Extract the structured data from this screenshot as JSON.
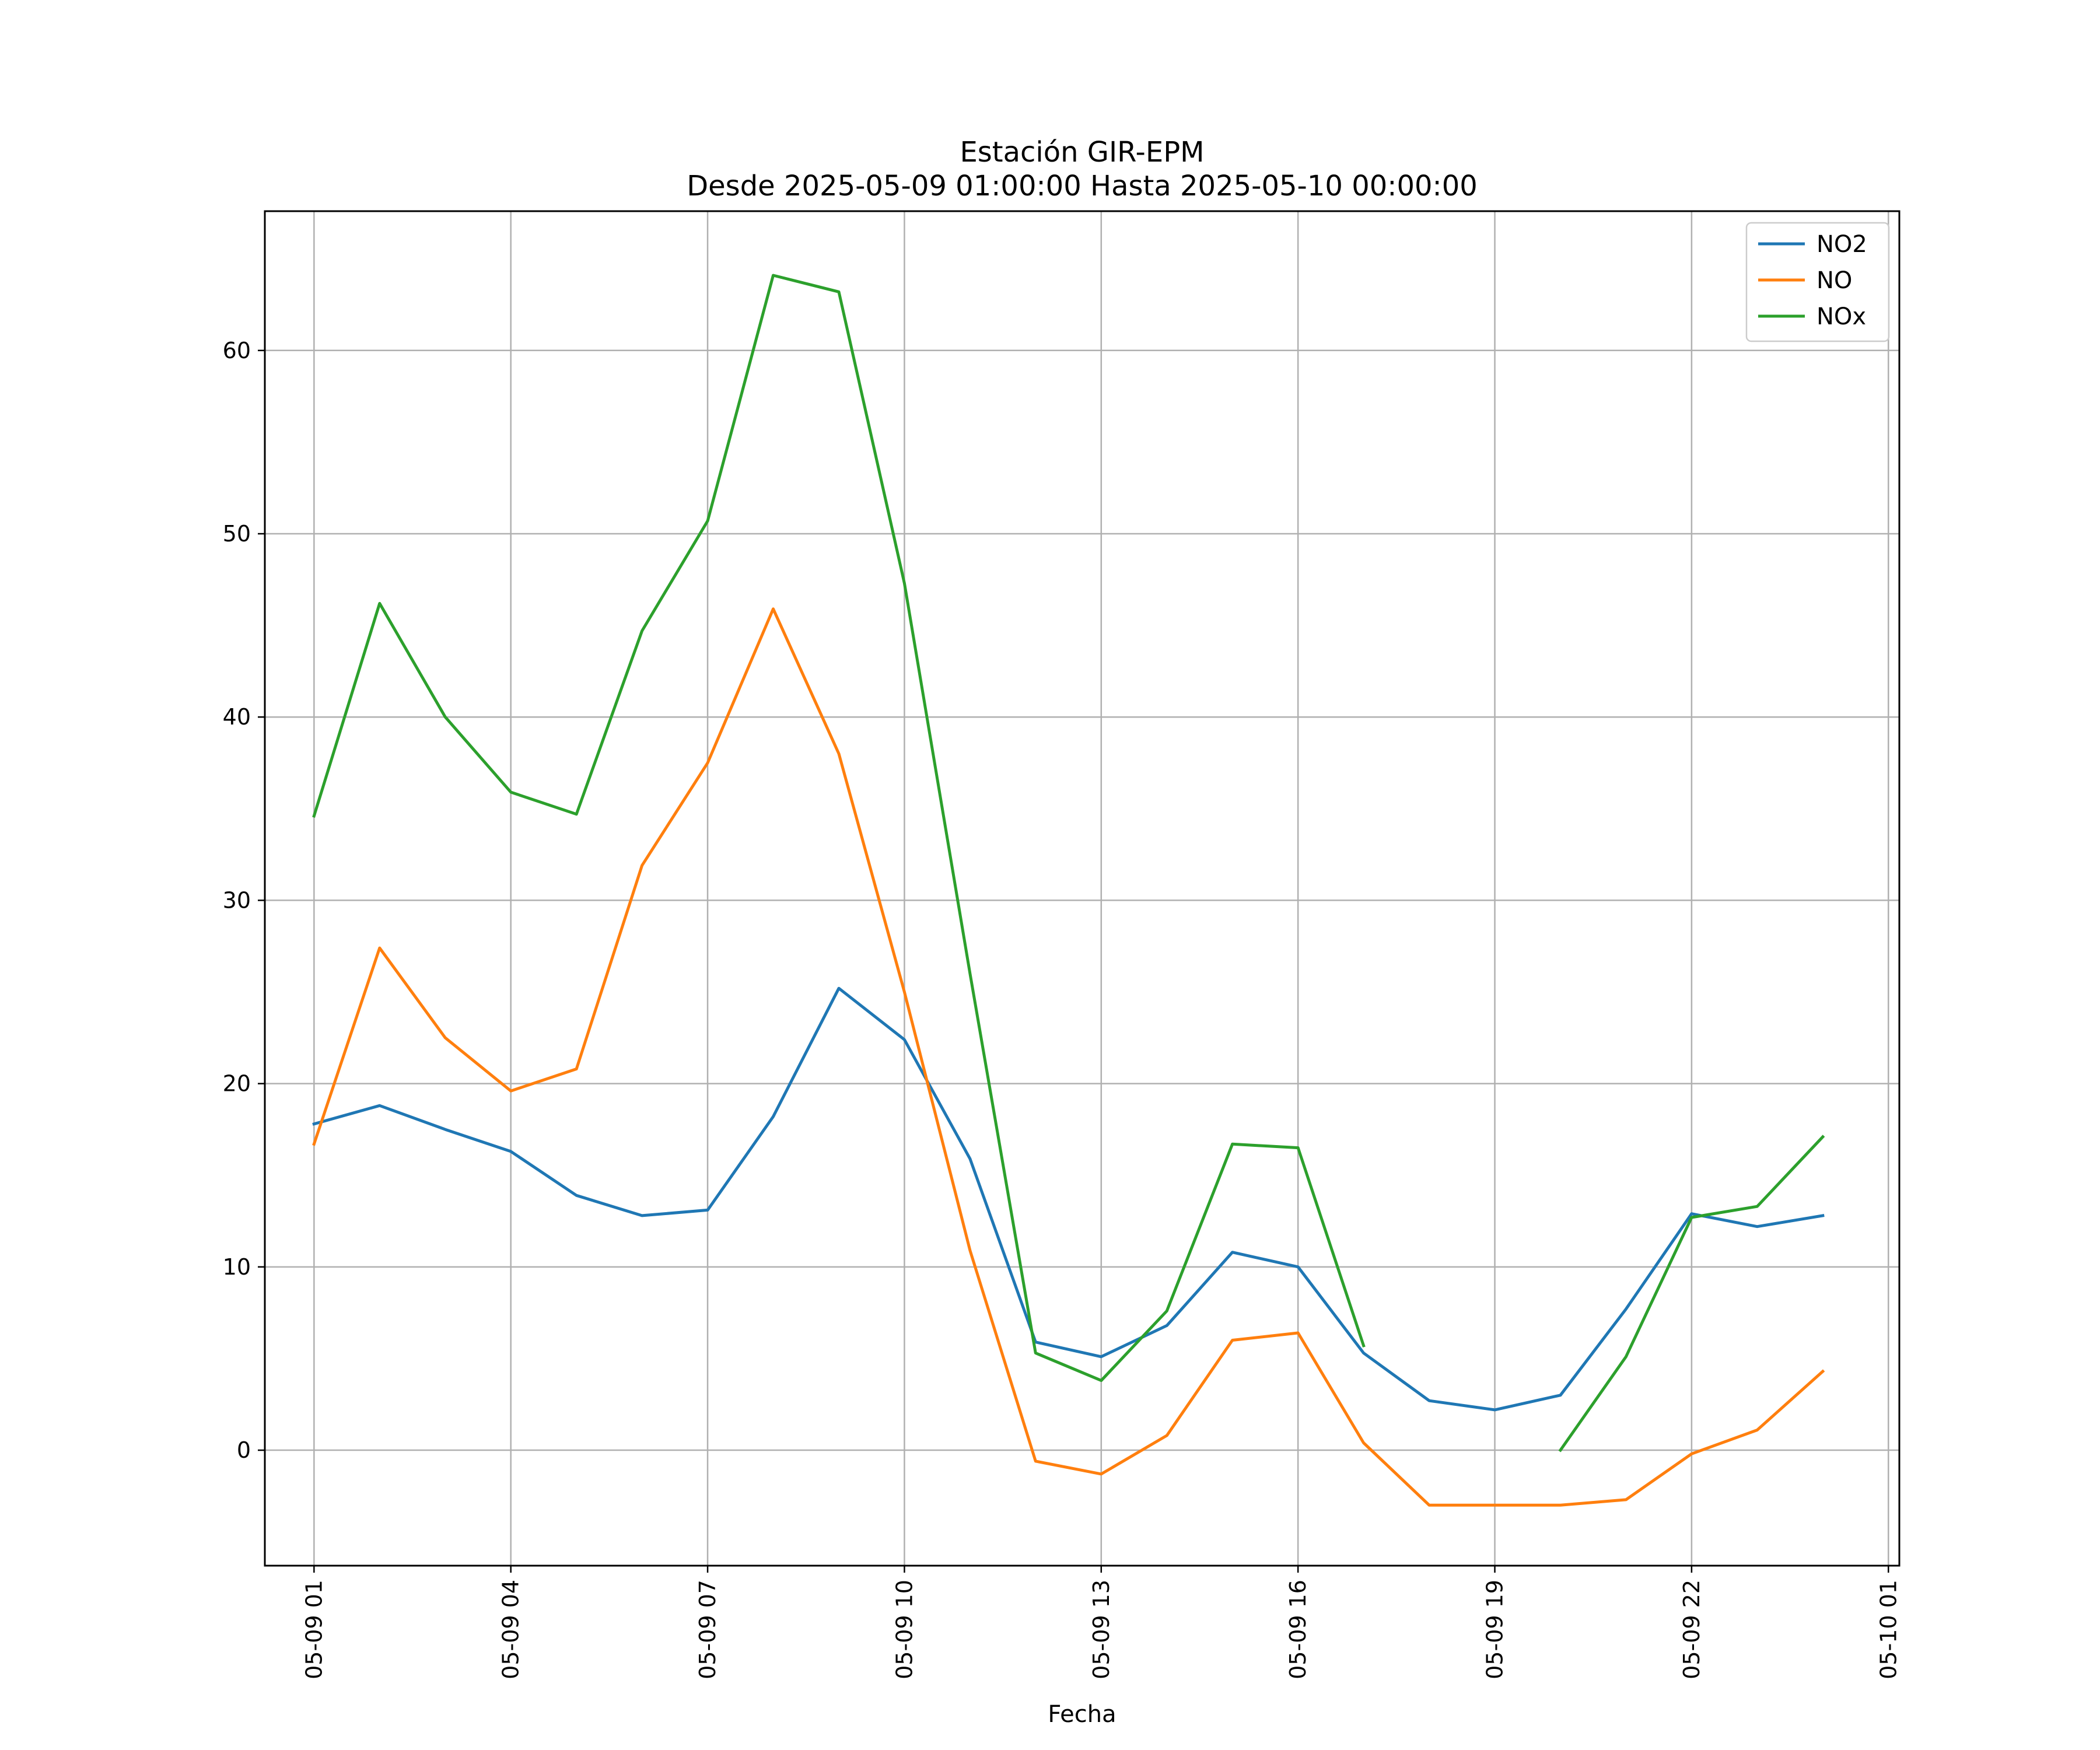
{
  "chart_data": {
    "type": "line",
    "title": "Estación GIR-EPM",
    "subtitle": "Desde 2025-05-09 01:00:00 Hasta 2025-05-10 00:00:00",
    "xlabel": "Fecha",
    "ylabel": "",
    "x": [
      "2025-05-09 01:00",
      "2025-05-09 02:00",
      "2025-05-09 03:00",
      "2025-05-09 04:00",
      "2025-05-09 05:00",
      "2025-05-09 06:00",
      "2025-05-09 07:00",
      "2025-05-09 08:00",
      "2025-05-09 09:00",
      "2025-05-09 10:00",
      "2025-05-09 11:00",
      "2025-05-09 12:00",
      "2025-05-09 13:00",
      "2025-05-09 14:00",
      "2025-05-09 15:00",
      "2025-05-09 16:00",
      "2025-05-09 17:00",
      "2025-05-09 18:00",
      "2025-05-09 19:00",
      "2025-05-09 20:00",
      "2025-05-09 21:00",
      "2025-05-09 22:00",
      "2025-05-09 23:00",
      "2025-05-10 00:00"
    ],
    "xlim": [
      "2025-05-09 00:15",
      "2025-05-10 01:10"
    ],
    "ylim": [
      -6.3,
      67.6
    ],
    "x_ticks": [
      {
        "at": "2025-05-09 01:00",
        "label": "05-09 01"
      },
      {
        "at": "2025-05-09 04:00",
        "label": "05-09 04"
      },
      {
        "at": "2025-05-09 07:00",
        "label": "05-09 07"
      },
      {
        "at": "2025-05-09 10:00",
        "label": "05-09 10"
      },
      {
        "at": "2025-05-09 13:00",
        "label": "05-09 13"
      },
      {
        "at": "2025-05-09 16:00",
        "label": "05-09 16"
      },
      {
        "at": "2025-05-09 19:00",
        "label": "05-09 19"
      },
      {
        "at": "2025-05-09 22:00",
        "label": "05-09 22"
      },
      {
        "at": "2025-05-10 01:00",
        "label": "05-10 01"
      }
    ],
    "y_ticks": [
      0,
      10,
      20,
      30,
      40,
      50,
      60
    ],
    "grid": true,
    "legend_position": "top-right",
    "series": [
      {
        "name": "NO2",
        "color": "#1f77b4",
        "values": [
          17.8,
          18.8,
          17.5,
          16.3,
          13.9,
          12.8,
          13.1,
          18.2,
          25.2,
          22.4,
          15.9,
          5.9,
          5.1,
          6.8,
          10.8,
          10.0,
          5.3,
          2.7,
          2.2,
          3.0,
          7.7,
          12.9,
          12.2,
          12.8
        ]
      },
      {
        "name": "NO",
        "color": "#ff7f0e",
        "values": [
          16.7,
          27.4,
          22.5,
          19.6,
          20.8,
          31.9,
          37.5,
          45.9,
          38.0,
          25.0,
          10.9,
          -0.6,
          -1.3,
          0.8,
          6.0,
          6.4,
          0.4,
          -3.0,
          -3.0,
          -3.0,
          -2.7,
          -0.2,
          1.1,
          4.3
        ]
      },
      {
        "name": "NOx",
        "color": "#2ca02c",
        "values": [
          34.6,
          46.2,
          40.0,
          35.9,
          34.7,
          44.7,
          50.7,
          64.1,
          63.2,
          47.3,
          26.0,
          5.3,
          3.8,
          7.6,
          16.7,
          16.5,
          5.7,
          null,
          null,
          0.0,
          5.1,
          12.7,
          13.3,
          17.1
        ]
      }
    ]
  }
}
